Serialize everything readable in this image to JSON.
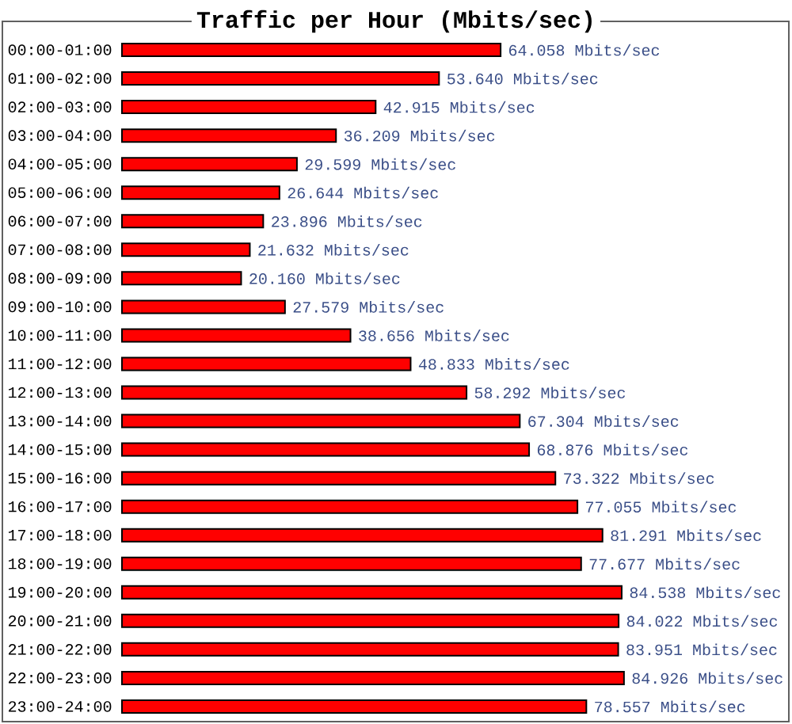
{
  "chart_data": {
    "type": "bar",
    "orientation": "horizontal",
    "title": "Traffic per Hour (Mbits/sec)",
    "color": "#ff0000",
    "categories": [
      "00:00-01:00",
      "01:00-02:00",
      "02:00-03:00",
      "03:00-04:00",
      "04:00-05:00",
      "05:00-06:00",
      "06:00-07:00",
      "07:00-08:00",
      "08:00-09:00",
      "09:00-10:00",
      "10:00-11:00",
      "11:00-12:00",
      "12:00-13:00",
      "13:00-14:00",
      "14:00-15:00",
      "15:00-16:00",
      "16:00-17:00",
      "17:00-18:00",
      "18:00-19:00",
      "19:00-20:00",
      "20:00-21:00",
      "21:00-22:00",
      "22:00-23:00",
      "23:00-24:00"
    ],
    "values": [
      64.058,
      53.64,
      42.915,
      36.209,
      29.599,
      26.644,
      23.896,
      21.632,
      20.16,
      27.579,
      38.656,
      48.833,
      58.292,
      67.304,
      68.876,
      73.322,
      77.055,
      81.291,
      77.677,
      84.538,
      84.022,
      83.951,
      84.926,
      78.557
    ],
    "value_labels": [
      "64.058 Mbits/sec",
      "53.640 Mbits/sec",
      "42.915 Mbits/sec",
      "36.209 Mbits/sec",
      "29.599 Mbits/sec",
      "26.644 Mbits/sec",
      "23.896 Mbits/sec",
      "21.632 Mbits/sec",
      "20.160 Mbits/sec",
      "27.579 Mbits/sec",
      "38.656 Mbits/sec",
      "48.833 Mbits/sec",
      "58.292 Mbits/sec",
      "67.304 Mbits/sec",
      "68.876 Mbits/sec",
      "73.322 Mbits/sec",
      "77.055 Mbits/sec",
      "81.291 Mbits/sec",
      "77.677 Mbits/sec",
      "84.538 Mbits/sec",
      "84.022 Mbits/sec",
      "83.951 Mbits/sec",
      "84.926 Mbits/sec",
      "78.557 Mbits/sec"
    ]
  }
}
